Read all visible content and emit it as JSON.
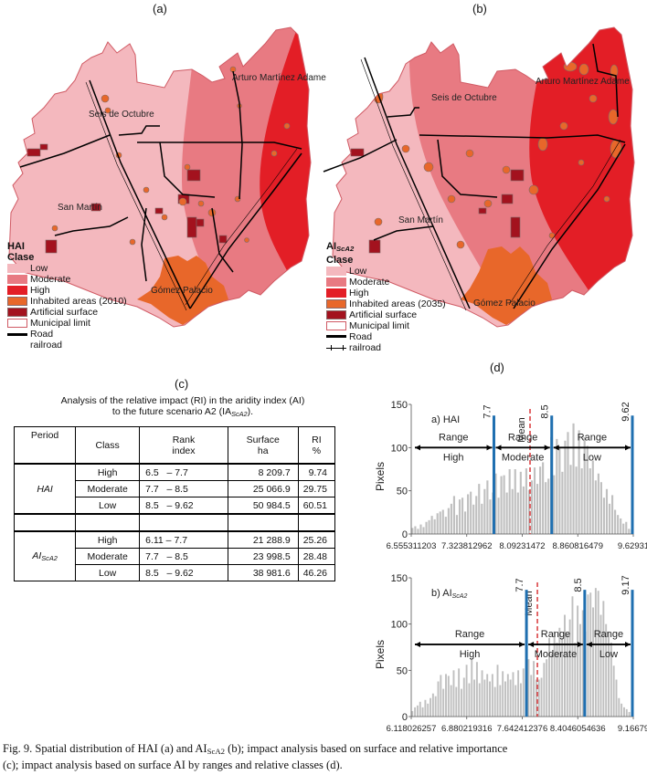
{
  "figure": {
    "panel_a_label": "(a)",
    "panel_b_label": "(b)",
    "panel_c_label": "(c)",
    "panel_d_label": "(d)",
    "caption_line1_pre": "Fig. 9. Spatial distribution of HAI (a) and AI",
    "caption_line1_sub": "ScA2",
    "caption_line1_post": " (b); impact analysis based on surface and relative importance",
    "caption_line2": "(c); impact analysis based on surface AI by ranges and relative classes (d)."
  },
  "colors": {
    "low": "#f4b8be",
    "moderate": "#e87a82",
    "high": "#e31e26",
    "inhabited": "#e8672a",
    "artificial": "#a3121e",
    "municipal_border": "#d05a64",
    "bar": "#c0c0c0",
    "threshold": "#1f6fb0",
    "mean": "#d9373a"
  },
  "map_a": {
    "legend_title": "HAI",
    "legend_subtitle": "Clase",
    "legend_items": [
      "Low",
      "Moderate",
      "High",
      "Inhabited areas (2010)",
      "Artificial surface",
      "Municipal limit",
      "Road",
      "railroad"
    ],
    "places": [
      "Seis de Octubre",
      "Arturo Martínez Adame",
      "San Martín",
      "Gómez Palacio"
    ]
  },
  "map_b": {
    "legend_title": "AI",
    "legend_title_sub": "ScA2",
    "legend_subtitle": "Clase",
    "legend_items": [
      "Low",
      "Moderate",
      "High",
      "Inhabited areas (2035)",
      "Artificial surface",
      "Municipal limit",
      "Road",
      "railroad"
    ],
    "places": [
      "Seis de Octubre",
      "Arturo Martínez Adame",
      "San Martín",
      "Gómez Palacio"
    ]
  },
  "table": {
    "title_line1": "Analysis of the relative impact (RI) in the aridity index (AI)",
    "title_line2_pre": "to the future scenario A2 (IA",
    "title_line2_sub": "ScA2",
    "title_line2_post": ").",
    "headers": [
      "Period",
      "Class",
      "Rank\nindex",
      "Surface\nha",
      "RI\n%"
    ],
    "groups": [
      {
        "period": "HAI",
        "rows": [
          {
            "class": "High",
            "rank": "6.5   – 7.7",
            "surface": "8 209.7",
            "ri": "9.74"
          },
          {
            "class": "Moderate",
            "rank": "7.7   – 8.5",
            "surface": "25 066.9",
            "ri": "29.75"
          },
          {
            "class": "Low",
            "rank": "8.5   – 9.62",
            "surface": "50 984.5",
            "ri": "60.51"
          }
        ]
      },
      {
        "period": "AIScA2",
        "rows": [
          {
            "class": "High",
            "rank": "6.11 – 7.7",
            "surface": "21 288.9",
            "ri": "25.26"
          },
          {
            "class": "Moderate",
            "rank": "7.7   – 8.5",
            "surface": "23 998.5",
            "ri": "28.48"
          },
          {
            "class": "Low",
            "rank": "8.5   – 9.62",
            "surface": "38 981.6",
            "ri": "46.26"
          }
        ]
      }
    ]
  },
  "chart_data": [
    {
      "type": "bar",
      "title": "a) HAI",
      "xlabel": "",
      "ylabel": "Pixels",
      "ylim": [
        0,
        150
      ],
      "yticks": [
        0,
        50,
        100,
        150
      ],
      "xlim": [
        6.555311203,
        9.62931
      ],
      "xtick_labels": [
        "6.555311203",
        "7.323812962",
        "8.09231472",
        "8.860816479",
        "9.62931"
      ],
      "thresholds": [
        {
          "value": 7.7,
          "label": "7.7"
        },
        {
          "value": 8.5,
          "label": "8.5"
        },
        {
          "value": 9.62,
          "label": "9.62"
        }
      ],
      "mean": {
        "value": 8.2,
        "label": "Mean"
      },
      "ranges": [
        {
          "top": "Range",
          "bottom": "High"
        },
        {
          "top": "Range",
          "bottom": "Moderate"
        },
        {
          "top": "Range",
          "bottom": "Low"
        }
      ],
      "range_arrow_y": 100,
      "values": [
        7,
        9,
        6,
        11,
        8,
        14,
        16,
        21,
        17,
        24,
        26,
        28,
        20,
        30,
        35,
        44,
        22,
        40,
        42,
        26,
        46,
        49,
        34,
        44,
        58,
        35,
        52,
        62,
        40,
        48,
        70,
        42,
        67,
        68,
        48,
        75,
        52,
        75,
        48,
        72,
        55,
        76,
        51,
        62,
        77,
        58,
        78,
        83,
        60,
        64,
        112,
        68,
        110,
        100,
        72,
        108,
        118,
        80,
        128,
        78,
        120,
        76,
        112,
        102,
        76,
        85,
        62,
        70,
        60,
        42,
        52,
        35,
        45,
        28,
        22,
        18,
        12,
        14,
        6,
        5
      ]
    },
    {
      "type": "bar",
      "title": "b) AIScA2",
      "xlabel": "",
      "ylabel": "Pixels",
      "ylim": [
        0,
        150
      ],
      "yticks": [
        0,
        50,
        100,
        150
      ],
      "xlim": [
        6.118026257,
        9.16679
      ],
      "xtick_labels": [
        "6.118026257",
        "6.880219316",
        "7.642412376",
        "8.4046054636",
        "9.16679"
      ],
      "thresholds": [
        {
          "value": 7.7,
          "label": "7.7"
        },
        {
          "value": 8.5,
          "label": "8.5"
        },
        {
          "value": 9.17,
          "label": "9.17"
        }
      ],
      "mean": {
        "value": 7.85,
        "label": "Mean"
      },
      "ranges": [
        {
          "top": "Range",
          "bottom": "High"
        },
        {
          "top": "Range",
          "bottom": "Moderate"
        },
        {
          "top": "Range",
          "bottom": "Low"
        }
      ],
      "range_arrow_y": 78,
      "values": [
        6,
        10,
        12,
        16,
        10,
        18,
        14,
        20,
        25,
        22,
        38,
        45,
        30,
        46,
        44,
        34,
        50,
        32,
        52,
        30,
        42,
        56,
        36,
        63,
        40,
        59,
        36,
        50,
        40,
        46,
        38,
        46,
        32,
        56,
        34,
        49,
        38,
        46,
        40,
        48,
        34,
        50,
        36,
        52,
        40,
        62,
        45,
        60,
        40,
        40,
        42,
        58,
        62,
        85,
        68,
        92,
        80,
        96,
        85,
        110,
        90,
        105,
        130,
        80,
        120,
        100,
        115,
        92,
        132,
        134,
        118,
        139,
        136,
        110,
        125,
        100,
        92,
        80,
        55,
        40,
        20,
        14,
        10,
        8,
        5,
        3
      ]
    }
  ]
}
